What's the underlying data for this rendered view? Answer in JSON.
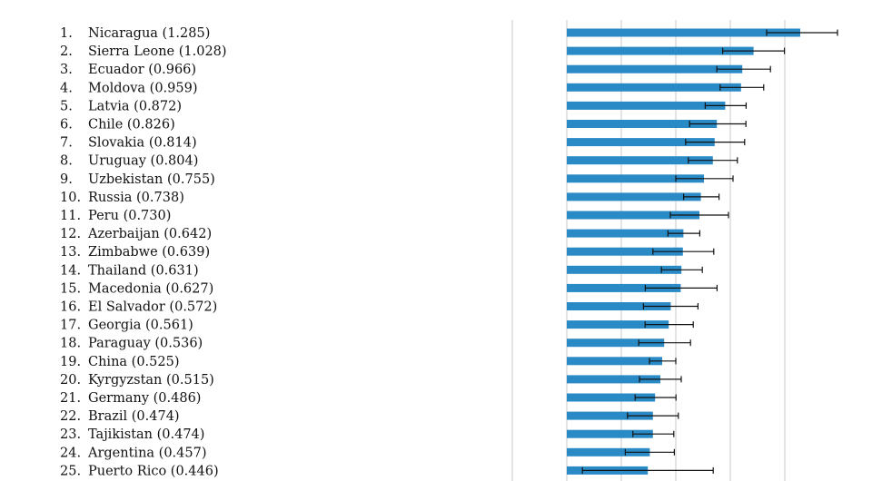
{
  "chart_data": {
    "type": "bar",
    "orientation": "horizontal",
    "grid": true,
    "xlim": [
      -1.0,
      1.6
    ],
    "bar_color": "#2a8ac6",
    "error_color": "#111111",
    "grid_color": "#c8c8c8",
    "rows": [
      {
        "rank": "1.",
        "label": "Nicaragua (1.285)",
        "value": 1.285,
        "err_low": 0.185,
        "err_high": 0.205
      },
      {
        "rank": "2.",
        "label": "Sierra Leone (1.028)",
        "value": 1.028,
        "err_low": 0.17,
        "err_high": 0.17
      },
      {
        "rank": "3.",
        "label": "Ecuador (0.966)",
        "value": 0.966,
        "err_low": 0.14,
        "err_high": 0.155
      },
      {
        "rank": "4.",
        "label": "Moldova (0.959)",
        "value": 0.959,
        "err_low": 0.115,
        "err_high": 0.125
      },
      {
        "rank": "5.",
        "label": "Latvia (0.872)",
        "value": 0.872,
        "err_low": 0.11,
        "err_high": 0.115
      },
      {
        "rank": "6.",
        "label": "Chile (0.826)",
        "value": 0.826,
        "err_low": 0.15,
        "err_high": 0.16
      },
      {
        "rank": "7.",
        "label": "Slovakia (0.814)",
        "value": 0.814,
        "err_low": 0.16,
        "err_high": 0.165
      },
      {
        "rank": "8.",
        "label": "Uruguay (0.804)",
        "value": 0.804,
        "err_low": 0.135,
        "err_high": 0.135
      },
      {
        "rank": "9.",
        "label": "Uzbekistan (0.755)",
        "value": 0.755,
        "err_low": 0.155,
        "err_high": 0.16
      },
      {
        "rank": "10.",
        "label": "Russia (0.738)",
        "value": 0.738,
        "err_low": 0.095,
        "err_high": 0.1
      },
      {
        "rank": "11.",
        "label": "Peru (0.730)",
        "value": 0.73,
        "err_low": 0.16,
        "err_high": 0.16
      },
      {
        "rank": "12.",
        "label": "Azerbaijan (0.642)",
        "value": 0.642,
        "err_low": 0.085,
        "err_high": 0.09
      },
      {
        "rank": "13.",
        "label": "Zimbabwe (0.639)",
        "value": 0.639,
        "err_low": 0.165,
        "err_high": 0.17
      },
      {
        "rank": "14.",
        "label": "Thailand (0.631)",
        "value": 0.631,
        "err_low": 0.11,
        "err_high": 0.115
      },
      {
        "rank": "15.",
        "label": "Macedonia (0.627)",
        "value": 0.627,
        "err_low": 0.195,
        "err_high": 0.2
      },
      {
        "rank": "16.",
        "label": "El Salvador (0.572)",
        "value": 0.572,
        "err_low": 0.15,
        "err_high": 0.15
      },
      {
        "rank": "17.",
        "label": "Georgia (0.561)",
        "value": 0.561,
        "err_low": 0.13,
        "err_high": 0.135
      },
      {
        "rank": "18.",
        "label": "Paraguay (0.536)",
        "value": 0.536,
        "err_low": 0.14,
        "err_high": 0.145
      },
      {
        "rank": "19.",
        "label": "China (0.525)",
        "value": 0.525,
        "err_low": 0.07,
        "err_high": 0.075
      },
      {
        "rank": "20.",
        "label": "Kyrgyzstan (0.515)",
        "value": 0.515,
        "err_low": 0.115,
        "err_high": 0.115
      },
      {
        "rank": "21.",
        "label": "Germany (0.486)",
        "value": 0.486,
        "err_low": 0.11,
        "err_high": 0.115
      },
      {
        "rank": "22.",
        "label": "Brazil (0.474)",
        "value": 0.474,
        "err_low": 0.14,
        "err_high": 0.14
      },
      {
        "rank": "23.",
        "label": "Tajikistan (0.474)",
        "value": 0.474,
        "err_low": 0.11,
        "err_high": 0.115
      },
      {
        "rank": "24.",
        "label": "Argentina (0.457)",
        "value": 0.457,
        "err_low": 0.135,
        "err_high": 0.135
      },
      {
        "rank": "25.",
        "label": "Puerto Rico (0.446)",
        "value": 0.446,
        "err_low": 0.36,
        "err_high": 0.36
      }
    ]
  }
}
